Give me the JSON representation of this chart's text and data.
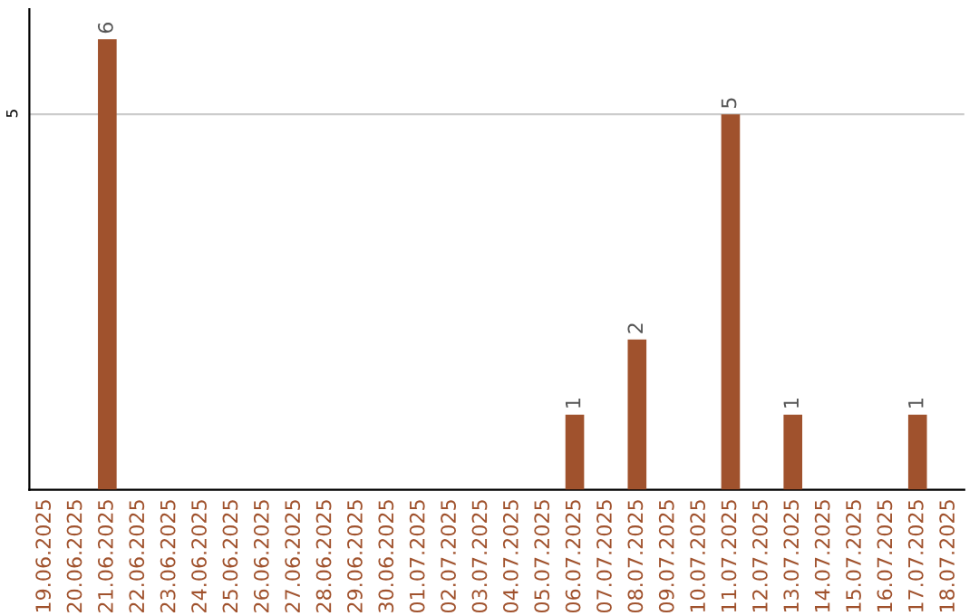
{
  "chart_data": {
    "type": "bar",
    "categories": [
      "19.06.2025",
      "20.06.2025",
      "21.06.2025",
      "22.06.2025",
      "23.06.2025",
      "24.06.2025",
      "25.06.2025",
      "26.06.2025",
      "27.06.2025",
      "28.06.2025",
      "29.06.2025",
      "30.06.2025",
      "01.07.2025",
      "02.07.2025",
      "03.07.2025",
      "04.07.2025",
      "05.07.2025",
      "06.07.2025",
      "07.07.2025",
      "08.07.2025",
      "09.07.2025",
      "10.07.2025",
      "11.07.2025",
      "12.07.2025",
      "13.07.2025",
      "14.07.2025",
      "15.07.2025",
      "16.07.2025",
      "17.07.2025",
      "18.07.2025"
    ],
    "values": [
      0,
      0,
      6,
      0,
      0,
      0,
      0,
      0,
      0,
      0,
      0,
      0,
      0,
      0,
      0,
      0,
      0,
      1,
      0,
      2,
      0,
      0,
      5,
      0,
      1,
      0,
      0,
      0,
      1,
      0
    ],
    "color": "#a0522d",
    "value_labels": [
      null,
      null,
      "6",
      null,
      null,
      null,
      null,
      null,
      null,
      null,
      null,
      null,
      null,
      null,
      null,
      null,
      null,
      "1",
      null,
      "2",
      null,
      null,
      "5",
      null,
      "1",
      null,
      null,
      null,
      "1",
      null
    ],
    "ylim": [
      0,
      6.4
    ],
    "yticks": [
      5
    ],
    "grid": "y"
  }
}
